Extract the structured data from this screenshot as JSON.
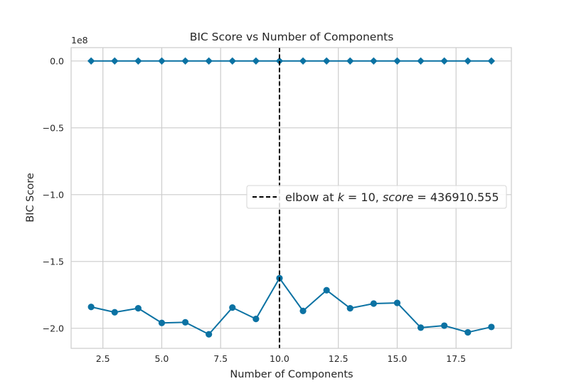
{
  "chart_data": {
    "type": "line",
    "title": "BIC Score vs Number of Components",
    "xlabel": "Number of Components",
    "ylabel": "BIC Score",
    "y_offset_label": "1e8",
    "xlim": [
      1.15,
      19.85
    ],
    "ylim": [
      -2.15,
      0.1
    ],
    "x_ticks": [
      2.5,
      5.0,
      7.5,
      10.0,
      12.5,
      15.0,
      17.5
    ],
    "x_tick_labels": [
      "2.5",
      "5.0",
      "7.5",
      "10.0",
      "12.5",
      "15.0",
      "17.5"
    ],
    "y_ticks": [
      0.0,
      -0.5,
      -1.0,
      -1.5,
      -2.0
    ],
    "y_tick_labels": [
      "0.0",
      "−0.5",
      "−1.0",
      "−1.5",
      "−2.0"
    ],
    "grid": true,
    "series": [
      {
        "marker": "diamond",
        "color": "#0b72a3",
        "x": [
          2,
          3,
          4,
          5,
          6,
          7,
          8,
          9,
          10,
          11,
          12,
          13,
          14,
          15,
          16,
          17,
          18,
          19
        ],
        "values": [
          0,
          0,
          0,
          0,
          0,
          0,
          0,
          0,
          0,
          0,
          0,
          0,
          0,
          0,
          0,
          0,
          0,
          0
        ]
      },
      {
        "marker": "circle",
        "color": "#0b72a3",
        "x": [
          2,
          3,
          4,
          5,
          6,
          7,
          8,
          9,
          10,
          11,
          12,
          13,
          14,
          15,
          16,
          17,
          18,
          19
        ],
        "values": [
          -1.84,
          -1.88,
          -1.85,
          -1.96,
          -1.955,
          -2.045,
          -1.845,
          -1.93,
          -1.625,
          -1.87,
          -1.715,
          -1.85,
          -1.815,
          -1.81,
          -1.995,
          -1.98,
          -2.03,
          -1.99
        ]
      }
    ],
    "elbow": {
      "x": 10,
      "color": "#000000",
      "legend_prefix": "elbow at ",
      "legend_k_symbol": "k",
      "legend_k_value": " = 10, ",
      "legend_score_symbol": "score",
      "legend_score_value": " = 436910.555"
    },
    "legend_position": "center-right"
  }
}
